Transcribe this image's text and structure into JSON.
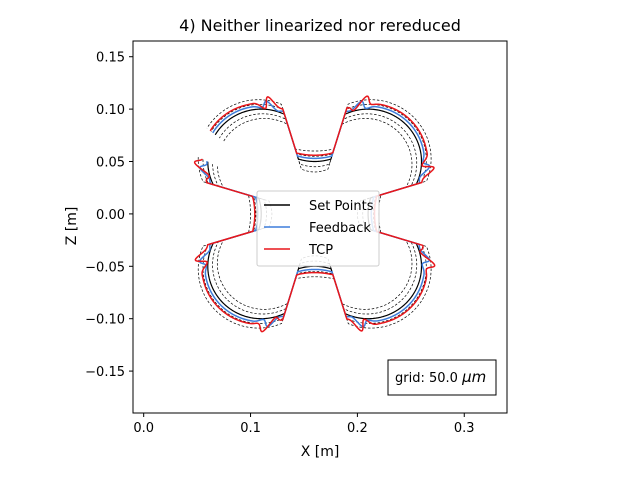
{
  "chart_data": {
    "type": "line",
    "title": "4) Neither linearized nor rereduced",
    "xlabel": "X [m]",
    "ylabel": "Z [m]",
    "xlim": [
      -0.01,
      0.34
    ],
    "ylim": [
      -0.19,
      0.165
    ],
    "xticks": [
      0.0,
      0.1,
      0.2,
      0.3
    ],
    "xtick_labels": [
      "0.0",
      "0.1",
      "0.2",
      "0.3"
    ],
    "yticks": [
      -0.15,
      -0.1,
      -0.05,
      0.0,
      0.05,
      0.1,
      0.15
    ],
    "ytick_labels": [
      "−0.15",
      "−0.10",
      "−0.05",
      "0.00",
      "0.05",
      "0.10",
      "0.15"
    ],
    "grid": false,
    "legend_position": "center",
    "annotation": {
      "prefix": "grid: 50.0 ",
      "unit": "μm"
    },
    "path_center": [
      0.16,
      0.0
    ],
    "path_description": "quatrefoil: concave arcs of radius 0.05 centred on the axis points, joined by convex arcs of radius 0.05 centred at the diagonal points",
    "series": [
      {
        "name": "Set Points",
        "color": "#000000",
        "style": "solid",
        "offset": 0.0
      },
      {
        "name": "Feedback",
        "color": "#3d7ddb",
        "style": "solid",
        "offset": 0.003
      },
      {
        "name": "TCP",
        "color": "#e8161b",
        "style": "solid",
        "offset": 0.006
      }
    ],
    "tolerance_band_offsets": [
      -0.01,
      -0.005,
      0.005,
      0.01
    ],
    "tolerance_band_color": "#000000"
  }
}
